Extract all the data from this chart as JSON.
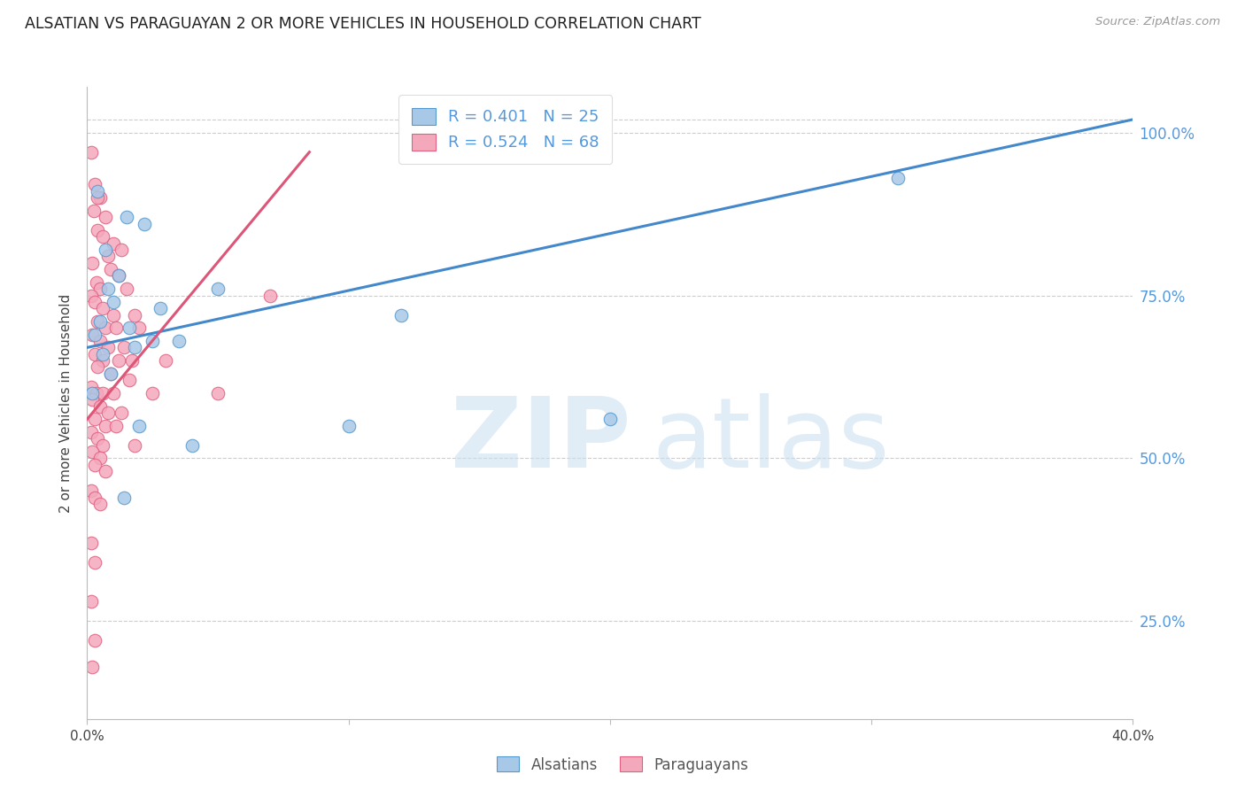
{
  "title": "ALSATIAN VS PARAGUAYAN 2 OR MORE VEHICLES IN HOUSEHOLD CORRELATION CHART",
  "source": "Source: ZipAtlas.com",
  "ylabel": "2 or more Vehicles in Household",
  "alsatian_color": "#a8c8e8",
  "paraguayan_color": "#f4a8bc",
  "alsatian_edge_color": "#5599cc",
  "paraguayan_edge_color": "#e06080",
  "alsatian_line_color": "#4488cc",
  "paraguayan_line_color": "#dd5577",
  "right_axis_color": "#5599dd",
  "alsatian_R": 0.401,
  "alsatian_N": 25,
  "paraguayan_R": 0.524,
  "paraguayan_N": 68,
  "xmin": 0.0,
  "xmax": 40.0,
  "ymin": 10.0,
  "ymax": 107.0,
  "yticks": [
    25.0,
    50.0,
    75.0,
    100.0
  ],
  "xtick_positions": [
    0.0,
    10.0,
    20.0,
    30.0,
    40.0
  ],
  "blue_line_x": [
    0.0,
    40.0
  ],
  "blue_line_y": [
    67.0,
    102.0
  ],
  "pink_line_x": [
    0.0,
    8.5
  ],
  "pink_line_y": [
    56.0,
    97.0
  ],
  "alsatian_points": [
    [
      0.4,
      91.0
    ],
    [
      1.5,
      87.0
    ],
    [
      2.2,
      86.0
    ],
    [
      0.7,
      82.0
    ],
    [
      1.2,
      78.0
    ],
    [
      0.8,
      76.0
    ],
    [
      1.0,
      74.0
    ],
    [
      2.8,
      73.0
    ],
    [
      0.5,
      71.0
    ],
    [
      1.6,
      70.0
    ],
    [
      0.3,
      69.0
    ],
    [
      2.5,
      68.0
    ],
    [
      3.5,
      68.0
    ],
    [
      1.8,
      67.0
    ],
    [
      0.6,
      66.0
    ],
    [
      5.0,
      76.0
    ],
    [
      12.0,
      72.0
    ],
    [
      10.0,
      55.0
    ],
    [
      2.0,
      55.0
    ],
    [
      4.0,
      52.0
    ],
    [
      1.4,
      44.0
    ],
    [
      31.0,
      93.0
    ],
    [
      20.0,
      56.0
    ],
    [
      0.9,
      63.0
    ],
    [
      0.2,
      60.0
    ]
  ],
  "paraguayan_points": [
    [
      0.15,
      97.0
    ],
    [
      0.3,
      92.0
    ],
    [
      0.5,
      90.0
    ],
    [
      0.25,
      88.0
    ],
    [
      0.7,
      87.0
    ],
    [
      0.4,
      85.0
    ],
    [
      0.6,
      84.0
    ],
    [
      1.0,
      83.0
    ],
    [
      1.3,
      82.0
    ],
    [
      0.8,
      81.0
    ],
    [
      0.2,
      80.0
    ],
    [
      0.9,
      79.0
    ],
    [
      1.2,
      78.0
    ],
    [
      0.35,
      77.0
    ],
    [
      0.5,
      76.0
    ],
    [
      1.5,
      76.0
    ],
    [
      0.15,
      75.0
    ],
    [
      0.3,
      74.0
    ],
    [
      0.6,
      73.0
    ],
    [
      1.0,
      72.0
    ],
    [
      1.8,
      72.0
    ],
    [
      0.4,
      71.0
    ],
    [
      0.7,
      70.0
    ],
    [
      1.1,
      70.0
    ],
    [
      2.0,
      70.0
    ],
    [
      0.2,
      69.0
    ],
    [
      0.5,
      68.0
    ],
    [
      0.8,
      67.0
    ],
    [
      1.4,
      67.0
    ],
    [
      0.3,
      66.0
    ],
    [
      0.6,
      65.0
    ],
    [
      1.2,
      65.0
    ],
    [
      1.7,
      65.0
    ],
    [
      0.4,
      64.0
    ],
    [
      0.9,
      63.0
    ],
    [
      1.6,
      62.0
    ],
    [
      0.15,
      61.0
    ],
    [
      0.35,
      60.0
    ],
    [
      0.6,
      60.0
    ],
    [
      1.0,
      60.0
    ],
    [
      2.5,
      60.0
    ],
    [
      0.2,
      59.0
    ],
    [
      0.5,
      58.0
    ],
    [
      0.8,
      57.0
    ],
    [
      1.3,
      57.0
    ],
    [
      0.3,
      56.0
    ],
    [
      0.7,
      55.0
    ],
    [
      1.1,
      55.0
    ],
    [
      0.15,
      54.0
    ],
    [
      0.4,
      53.0
    ],
    [
      0.6,
      52.0
    ],
    [
      1.8,
      52.0
    ],
    [
      0.2,
      51.0
    ],
    [
      0.5,
      50.0
    ],
    [
      0.3,
      49.0
    ],
    [
      0.7,
      48.0
    ],
    [
      3.0,
      65.0
    ],
    [
      5.0,
      60.0
    ],
    [
      7.0,
      75.0
    ],
    [
      0.15,
      45.0
    ],
    [
      0.3,
      44.0
    ],
    [
      0.5,
      43.0
    ],
    [
      0.15,
      37.0
    ],
    [
      0.3,
      34.0
    ],
    [
      0.15,
      28.0
    ],
    [
      0.3,
      22.0
    ],
    [
      0.2,
      18.0
    ],
    [
      0.4,
      90.0
    ]
  ]
}
